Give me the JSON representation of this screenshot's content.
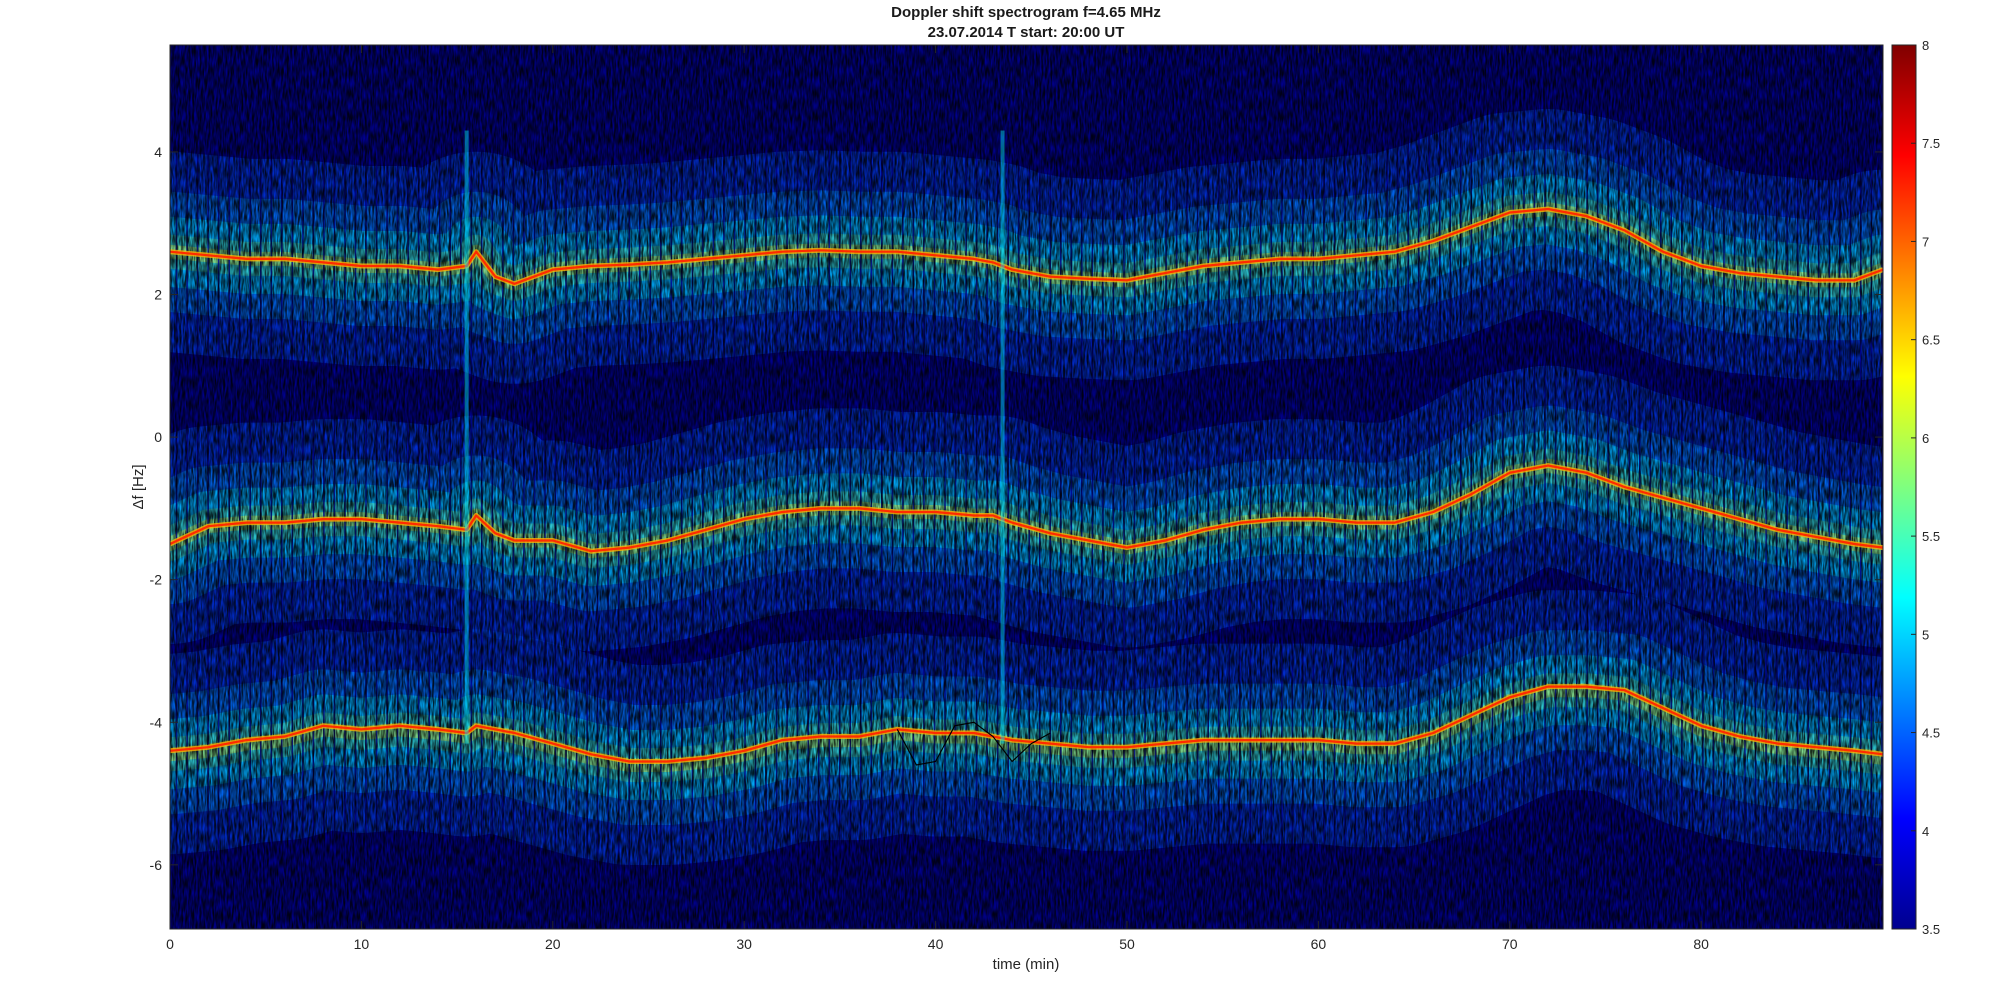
{
  "chart_data": {
    "type": "heatmap",
    "title": "Doppler shift spectrogram f=4.65 MHz",
    "subtitle": "23.07.2014   T start: 20:00 UT",
    "xlabel": "time (min)",
    "ylabel": "Δf [Hz]",
    "xlim": [
      0,
      89.5
    ],
    "ylim": [
      -6.9,
      5.5
    ],
    "xticks": [
      0,
      10,
      20,
      30,
      40,
      50,
      60,
      70,
      80
    ],
    "yticks": [
      4,
      2,
      0,
      -2,
      -4,
      -6
    ],
    "colorbar": {
      "limits": [
        3.5,
        8
      ],
      "ticks": [
        "8",
        "7.5",
        "7",
        "6.5",
        "6",
        "5.5",
        "5",
        "4.5",
        "4",
        "3.5"
      ],
      "colormap": "jet"
    },
    "colors": {
      "background": "#00008f",
      "trace_red": "#ff2a00",
      "trace_orange": "#ffb000",
      "noise_cyan": "#00e6ff",
      "noise_blue": "#0050ff",
      "tracker_line": "#000000"
    },
    "series": [
      {
        "x": [
          0,
          2,
          4,
          6,
          8,
          10,
          12,
          14,
          15.5,
          16,
          17,
          18,
          20,
          22,
          24,
          26,
          28,
          30,
          32,
          34,
          36,
          38,
          40,
          42,
          43,
          44,
          46,
          48,
          50,
          52,
          54,
          56,
          58,
          60,
          62,
          64,
          66,
          68,
          70,
          72,
          74,
          76,
          78,
          80,
          82,
          84,
          86,
          88,
          89.5
        ],
        "y": [
          2.6,
          2.55,
          2.5,
          2.5,
          2.45,
          2.4,
          2.4,
          2.35,
          2.4,
          2.6,
          2.25,
          2.15,
          2.35,
          2.4,
          2.42,
          2.45,
          2.5,
          2.55,
          2.6,
          2.62,
          2.6,
          2.6,
          2.55,
          2.5,
          2.45,
          2.35,
          2.25,
          2.22,
          2.2,
          2.3,
          2.4,
          2.45,
          2.5,
          2.5,
          2.55,
          2.6,
          2.75,
          2.95,
          3.15,
          3.2,
          3.1,
          2.9,
          2.6,
          2.4,
          2.3,
          2.25,
          2.2,
          2.2,
          2.35
        ]
      },
      {
        "x": [
          0,
          2,
          4,
          6,
          8,
          10,
          12,
          14,
          15.5,
          16,
          17,
          18,
          20,
          22,
          24,
          26,
          28,
          30,
          32,
          34,
          36,
          38,
          40,
          42,
          43,
          44,
          46,
          48,
          50,
          52,
          54,
          56,
          58,
          60,
          62,
          64,
          66,
          68,
          70,
          72,
          74,
          76,
          78,
          80,
          82,
          84,
          86,
          88,
          89.5
        ],
        "y": [
          -1.5,
          -1.25,
          -1.2,
          -1.2,
          -1.15,
          -1.15,
          -1.2,
          -1.25,
          -1.3,
          -1.1,
          -1.35,
          -1.45,
          -1.45,
          -1.6,
          -1.55,
          -1.45,
          -1.3,
          -1.15,
          -1.05,
          -1.0,
          -1.0,
          -1.05,
          -1.05,
          -1.1,
          -1.1,
          -1.2,
          -1.35,
          -1.45,
          -1.55,
          -1.45,
          -1.3,
          -1.2,
          -1.15,
          -1.15,
          -1.2,
          -1.2,
          -1.05,
          -0.8,
          -0.5,
          -0.4,
          -0.5,
          -0.7,
          -0.85,
          -1.0,
          -1.15,
          -1.3,
          -1.4,
          -1.5,
          -1.55
        ]
      },
      {
        "x": [
          0,
          2,
          4,
          6,
          8,
          10,
          12,
          14,
          15.5,
          16,
          17,
          18,
          20,
          22,
          24,
          26,
          28,
          30,
          32,
          34,
          36,
          38,
          40,
          42,
          43,
          44,
          46,
          48,
          50,
          52,
          54,
          56,
          58,
          60,
          62,
          64,
          66,
          68,
          70,
          72,
          74,
          76,
          78,
          80,
          82,
          84,
          86,
          88,
          89.5
        ],
        "y": [
          -4.4,
          -4.35,
          -4.25,
          -4.2,
          -4.05,
          -4.1,
          -4.05,
          -4.1,
          -4.15,
          -4.05,
          -4.1,
          -4.15,
          -4.3,
          -4.45,
          -4.55,
          -4.55,
          -4.5,
          -4.4,
          -4.25,
          -4.2,
          -4.2,
          -4.1,
          -4.15,
          -4.15,
          -4.2,
          -4.25,
          -4.3,
          -4.35,
          -4.35,
          -4.3,
          -4.25,
          -4.25,
          -4.25,
          -4.25,
          -4.3,
          -4.3,
          -4.15,
          -3.9,
          -3.65,
          -3.5,
          -3.5,
          -3.55,
          -3.8,
          -4.05,
          -4.2,
          -4.3,
          -4.35,
          -4.4,
          -4.45
        ]
      }
    ],
    "tracker_segment": {
      "x": [
        38,
        39,
        40,
        41,
        42,
        43,
        44,
        45,
        46
      ],
      "y": [
        -4.1,
        -4.6,
        -4.55,
        -4.05,
        -4.0,
        -4.2,
        -4.55,
        -4.3,
        -4.15
      ]
    },
    "spikes_x": [
      15.5,
      43.5
    ]
  }
}
